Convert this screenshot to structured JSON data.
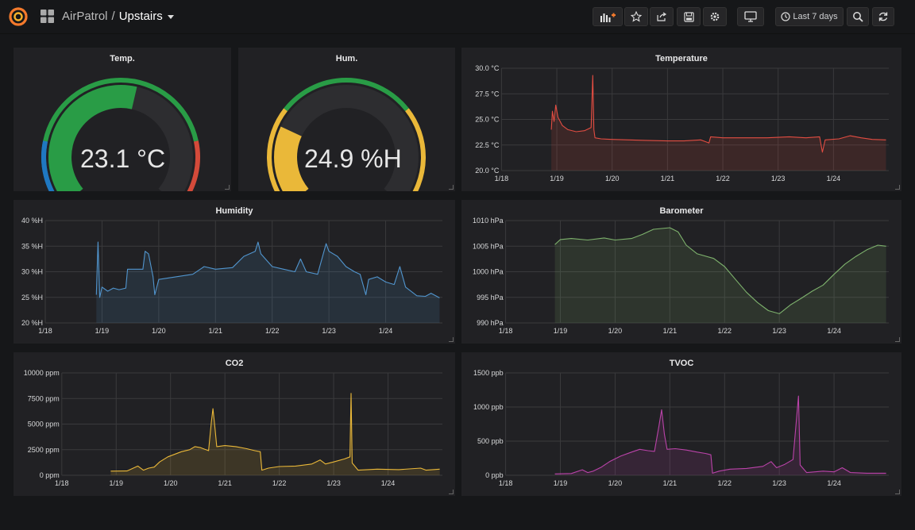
{
  "colors": {
    "background": "#161719",
    "panel": "#212124",
    "gauge_green": "#299c46",
    "gauge_blue": "#1f78c1",
    "gauge_red": "#d44a3a",
    "gauge_yellow": "#eab839",
    "temperature": "#e24d42",
    "humidity": "#5195ce",
    "barometer": "#7eb26d",
    "co2": "#eab839",
    "tvoc": "#ba43a9"
  },
  "header": {
    "folder": "AirPatrol",
    "separator": "/",
    "title": "Upstairs",
    "icons": [
      "grafana-logo-icon",
      "apps-grid-icon"
    ],
    "toolbar": {
      "add_panel_icon": "add-panel-icon",
      "star_icon": "star-icon",
      "share_icon": "share-icon",
      "save_icon": "save-icon",
      "settings_icon": "gear-icon",
      "tv_icon": "monitor-icon",
      "time_range_icon": "clock-icon",
      "time_range_label": "Last 7 days",
      "zoom_icon": "zoom-out-icon",
      "refresh_icon": "refresh-icon"
    }
  },
  "panels": {
    "temp_gauge": {
      "title": "Temp.",
      "value": "23.1 °C",
      "fraction": 0.55
    },
    "hum_gauge": {
      "title": "Hum.",
      "value": "24.9 %H",
      "fraction": 0.25
    },
    "temperature": {
      "title": "Temperature"
    },
    "humidity": {
      "title": "Humidity"
    },
    "barometer": {
      "title": "Barometer"
    },
    "co2": {
      "title": "CO2"
    },
    "tvoc": {
      "title": "TVOC"
    }
  },
  "chart_data": [
    {
      "type": "area",
      "id": "temperature",
      "title": "Temperature",
      "x_ticks": [
        "1/18",
        "1/19",
        "1/20",
        "1/21",
        "1/22",
        "1/23",
        "1/24"
      ],
      "y_ticks": [
        "20.0 °C",
        "22.5 °C",
        "25.0 °C",
        "27.5 °C",
        "30.0 °C"
      ],
      "ylim": [
        20,
        30
      ],
      "xlim": [
        0,
        7.0
      ],
      "series": [
        {
          "points": [
            [
              0.9,
              24.0
            ],
            [
              0.92,
              25.8
            ],
            [
              0.95,
              24.8
            ],
            [
              0.98,
              26.4
            ],
            [
              1.02,
              25.2
            ],
            [
              1.1,
              24.4
            ],
            [
              1.2,
              24.0
            ],
            [
              1.35,
              23.8
            ],
            [
              1.5,
              23.9
            ],
            [
              1.62,
              24.2
            ],
            [
              1.65,
              29.3
            ],
            [
              1.67,
              24.0
            ],
            [
              1.69,
              23.2
            ],
            [
              1.8,
              23.1
            ],
            [
              2.0,
              23.05
            ],
            [
              2.3,
              23.0
            ],
            [
              2.6,
              22.95
            ],
            [
              3.0,
              22.9
            ],
            [
              3.3,
              22.9
            ],
            [
              3.6,
              23.0
            ],
            [
              3.75,
              22.7
            ],
            [
              3.78,
              23.3
            ],
            [
              4.0,
              23.2
            ],
            [
              4.4,
              23.2
            ],
            [
              4.8,
              23.2
            ],
            [
              5.2,
              23.3
            ],
            [
              5.5,
              23.2
            ],
            [
              5.75,
              23.3
            ],
            [
              5.8,
              21.8
            ],
            [
              5.85,
              23.0
            ],
            [
              6.1,
              23.1
            ],
            [
              6.3,
              23.4
            ],
            [
              6.5,
              23.2
            ],
            [
              6.7,
              23.05
            ],
            [
              6.95,
              23.0
            ]
          ]
        }
      ]
    },
    {
      "type": "area",
      "id": "humidity",
      "title": "Humidity",
      "x_ticks": [
        "1/18",
        "1/19",
        "1/20",
        "1/21",
        "1/22",
        "1/23",
        "1/24"
      ],
      "y_ticks": [
        "20 %H",
        "25 %H",
        "30 %H",
        "35 %H",
        "40 %H"
      ],
      "ylim": [
        20,
        40
      ],
      "xlim": [
        0,
        7.0
      ],
      "series": [
        {
          "points": [
            [
              0.9,
              25.5
            ],
            [
              0.93,
              35.8
            ],
            [
              0.96,
              25.0
            ],
            [
              1.0,
              27.0
            ],
            [
              1.1,
              26.2
            ],
            [
              1.2,
              26.8
            ],
            [
              1.3,
              26.5
            ],
            [
              1.42,
              26.8
            ],
            [
              1.45,
              30.5
            ],
            [
              1.5,
              30.5
            ],
            [
              1.72,
              30.5
            ],
            [
              1.76,
              34.0
            ],
            [
              1.82,
              33.5
            ],
            [
              1.9,
              29.0
            ],
            [
              1.93,
              25.5
            ],
            [
              2.0,
              28.5
            ],
            [
              2.3,
              29.0
            ],
            [
              2.6,
              29.5
            ],
            [
              2.8,
              31.0
            ],
            [
              3.0,
              30.5
            ],
            [
              3.3,
              30.8
            ],
            [
              3.5,
              33.0
            ],
            [
              3.7,
              34.0
            ],
            [
              3.75,
              35.8
            ],
            [
              3.8,
              33.5
            ],
            [
              4.0,
              31.0
            ],
            [
              4.2,
              30.5
            ],
            [
              4.4,
              30.0
            ],
            [
              4.5,
              32.5
            ],
            [
              4.6,
              30.0
            ],
            [
              4.8,
              29.5
            ],
            [
              4.95,
              35.5
            ],
            [
              5.0,
              34.0
            ],
            [
              5.15,
              33.0
            ],
            [
              5.3,
              31.0
            ],
            [
              5.45,
              30.0
            ],
            [
              5.55,
              29.5
            ],
            [
              5.65,
              25.5
            ],
            [
              5.7,
              28.5
            ],
            [
              5.85,
              29.0
            ],
            [
              6.0,
              28.0
            ],
            [
              6.15,
              27.5
            ],
            [
              6.25,
              31.0
            ],
            [
              6.35,
              27.0
            ],
            [
              6.55,
              25.3
            ],
            [
              6.7,
              25.2
            ],
            [
              6.8,
              25.8
            ],
            [
              6.95,
              24.9
            ]
          ]
        }
      ]
    },
    {
      "type": "area",
      "id": "barometer",
      "title": "Barometer",
      "x_ticks": [
        "1/18",
        "1/19",
        "1/20",
        "1/21",
        "1/22",
        "1/23",
        "1/24"
      ],
      "y_ticks": [
        "990 hPa",
        "995 hPa",
        "1000 hPa",
        "1005 hPa",
        "1010 hPa"
      ],
      "ylim": [
        990,
        1010
      ],
      "xlim": [
        0,
        7.0
      ],
      "series": [
        {
          "points": [
            [
              0.9,
              1005.3
            ],
            [
              1.0,
              1006.3
            ],
            [
              1.2,
              1006.5
            ],
            [
              1.5,
              1006.2
            ],
            [
              1.8,
              1006.6
            ],
            [
              2.0,
              1006.2
            ],
            [
              2.3,
              1006.5
            ],
            [
              2.5,
              1007.3
            ],
            [
              2.7,
              1008.3
            ],
            [
              3.0,
              1008.6
            ],
            [
              3.15,
              1007.8
            ],
            [
              3.3,
              1005.2
            ],
            [
              3.5,
              1003.5
            ],
            [
              3.8,
              1002.6
            ],
            [
              4.0,
              1001.0
            ],
            [
              4.2,
              998.5
            ],
            [
              4.4,
              996.0
            ],
            [
              4.6,
              994.0
            ],
            [
              4.8,
              992.4
            ],
            [
              5.0,
              991.8
            ],
            [
              5.2,
              993.5
            ],
            [
              5.4,
              994.8
            ],
            [
              5.6,
              996.2
            ],
            [
              5.8,
              997.4
            ],
            [
              6.0,
              999.5
            ],
            [
              6.2,
              1001.5
            ],
            [
              6.4,
              1003.0
            ],
            [
              6.6,
              1004.3
            ],
            [
              6.8,
              1005.2
            ],
            [
              6.95,
              1005.0
            ]
          ]
        }
      ]
    },
    {
      "type": "area",
      "id": "co2",
      "title": "CO2",
      "x_ticks": [
        "1/18",
        "1/19",
        "1/20",
        "1/21",
        "1/22",
        "1/23",
        "1/24"
      ],
      "y_ticks": [
        "0 ppm",
        "2500 ppm",
        "5000 ppm",
        "7500 ppm",
        "10000 ppm"
      ],
      "ylim": [
        0,
        10000
      ],
      "xlim": [
        0,
        7.0
      ],
      "series": [
        {
          "points": [
            [
              0.9,
              400
            ],
            [
              1.2,
              420
            ],
            [
              1.4,
              900
            ],
            [
              1.5,
              500
            ],
            [
              1.6,
              700
            ],
            [
              1.7,
              800
            ],
            [
              1.8,
              1300
            ],
            [
              1.95,
              1800
            ],
            [
              2.2,
              2300
            ],
            [
              2.35,
              2500
            ],
            [
              2.45,
              2800
            ],
            [
              2.55,
              2700
            ],
            [
              2.7,
              2400
            ],
            [
              2.75,
              5200
            ],
            [
              2.78,
              6500
            ],
            [
              2.82,
              4500
            ],
            [
              2.85,
              2800
            ],
            [
              3.0,
              2900
            ],
            [
              3.2,
              2800
            ],
            [
              3.4,
              2600
            ],
            [
              3.55,
              2400
            ],
            [
              3.65,
              2300
            ],
            [
              3.68,
              500
            ],
            [
              3.8,
              700
            ],
            [
              4.0,
              850
            ],
            [
              4.3,
              900
            ],
            [
              4.6,
              1100
            ],
            [
              4.75,
              1500
            ],
            [
              4.85,
              1100
            ],
            [
              5.0,
              1300
            ],
            [
              5.2,
              1600
            ],
            [
              5.3,
              1800
            ],
            [
              5.32,
              8000
            ],
            [
              5.34,
              1200
            ],
            [
              5.45,
              500
            ],
            [
              5.8,
              600
            ],
            [
              6.2,
              550
            ],
            [
              6.6,
              700
            ],
            [
              6.7,
              500
            ],
            [
              6.95,
              600
            ]
          ]
        }
      ]
    },
    {
      "type": "area",
      "id": "tvoc",
      "title": "TVOC",
      "x_ticks": [
        "1/18",
        "1/19",
        "1/20",
        "1/21",
        "1/22",
        "1/23",
        "1/24"
      ],
      "y_ticks": [
        "0 ppb",
        "500 ppb",
        "1000 ppb",
        "1500 ppb"
      ],
      "ylim": [
        0,
        1500
      ],
      "xlim": [
        0,
        7.0
      ],
      "series": [
        {
          "points": [
            [
              0.9,
              20
            ],
            [
              1.2,
              25
            ],
            [
              1.4,
              80
            ],
            [
              1.5,
              40
            ],
            [
              1.6,
              60
            ],
            [
              1.75,
              120
            ],
            [
              1.9,
              200
            ],
            [
              2.1,
              280
            ],
            [
              2.3,
              340
            ],
            [
              2.45,
              380
            ],
            [
              2.6,
              360
            ],
            [
              2.72,
              350
            ],
            [
              2.8,
              720
            ],
            [
              2.85,
              960
            ],
            [
              2.9,
              600
            ],
            [
              2.95,
              380
            ],
            [
              3.1,
              390
            ],
            [
              3.3,
              370
            ],
            [
              3.5,
              340
            ],
            [
              3.65,
              320
            ],
            [
              3.75,
              300
            ],
            [
              3.78,
              30
            ],
            [
              3.9,
              60
            ],
            [
              4.1,
              90
            ],
            [
              4.4,
              100
            ],
            [
              4.7,
              130
            ],
            [
              4.85,
              200
            ],
            [
              4.95,
              110
            ],
            [
              5.1,
              160
            ],
            [
              5.25,
              230
            ],
            [
              5.35,
              1160
            ],
            [
              5.38,
              150
            ],
            [
              5.5,
              40
            ],
            [
              5.8,
              60
            ],
            [
              6.0,
              50
            ],
            [
              6.15,
              110
            ],
            [
              6.3,
              40
            ],
            [
              6.6,
              30
            ],
            [
              6.95,
              30
            ]
          ]
        }
      ]
    }
  ]
}
